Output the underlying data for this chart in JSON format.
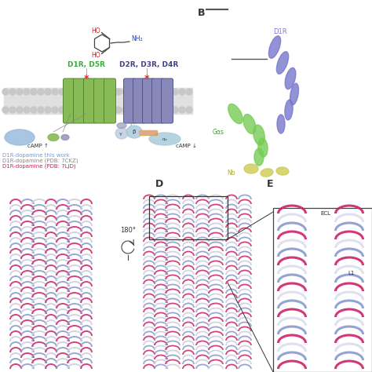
{
  "bg_color": "#ffffff",
  "panel_B_label": "B",
  "panel_D_label": "D",
  "panel_E_label": "E",
  "d1r_d5r_label": "D1R, D5R",
  "d1r_d5r_color": "#3aaa3a",
  "d2r_d3r_d4r_label": "D2R, D3R, D4R",
  "d2r_d3r_d4r_color": "#404080",
  "camp_up": "cAMP ↑",
  "camp_down": "cAMP ↓",
  "legend_line1": "D1R-dopamine this work",
  "legend_line1_color": "#7799cc",
  "legend_line2": "D1R-dopamine (PDB: 7CKZ)",
  "legend_line2_color": "#888888",
  "legend_line3": "D1R-dopamine (PDB: 7LJD)",
  "legend_line3_color": "#cc2266",
  "rotation_label": "180°",
  "d1r_label": "D1R",
  "ga_label": "Gαs",
  "nb_label": "Nb",
  "ecl_label": "ECL",
  "l1_label": "L1",
  "membrane_color": "#e0e0e0",
  "membrane_circle_color": "#c8c8c8",
  "green_helix_color": "#88bb55",
  "blue_helix_color": "#8888bb",
  "green_helix_edge": "#558833",
  "blue_helix_edge": "#555588",
  "dopamine_ho_color": "#cc2222",
  "dopamine_nh2_color": "#2244bb",
  "ribbon_crimson": "#cc2266",
  "ribbon_blue": "#8899cc",
  "ribbon_light": "#ddddee",
  "gs_blob_color": "#99bbdd",
  "beta_blob_color": "#aaccdd",
  "alpha_blob_color": "#aaccdd",
  "small_green_color": "#88bb55",
  "small_purple_color": "#9999bb"
}
